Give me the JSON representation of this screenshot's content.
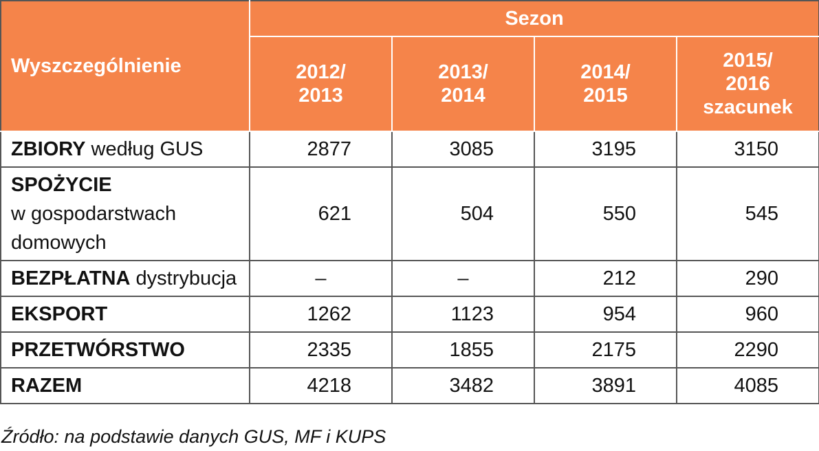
{
  "table": {
    "header": {
      "row_label": "Wyszczególnienie",
      "group": "Sezon",
      "columns": [
        [
          "2012/",
          "2013"
        ],
        [
          "2013/",
          "2014"
        ],
        [
          "2014/",
          "2015"
        ],
        [
          "2015/",
          "2016",
          "szacunek"
        ]
      ]
    },
    "rows": [
      {
        "bold": "ZBIORY",
        "rest": "według GUS",
        "cells": [
          "2877",
          "3085",
          "3195",
          "3150"
        ]
      },
      {
        "bold": "SPOŻYCIE",
        "rest": "w gospodarstwach domowych",
        "cells": [
          "621",
          "504",
          "550",
          "545"
        ]
      },
      {
        "bold": "BEZPŁATNA",
        "rest": "dystrybucja",
        "cells": [
          "–",
          "–",
          "212",
          "290"
        ]
      },
      {
        "bold": "EKSPORT",
        "cells": [
          "1262",
          "1123",
          "954",
          "960"
        ]
      },
      {
        "bold": "PRZETWÓRSTWO",
        "cells": [
          "2335",
          "1855",
          "2175",
          "2290"
        ]
      },
      {
        "bold": "RAZEM",
        "cells": [
          "4218",
          "3482",
          "3891",
          "4085"
        ]
      }
    ]
  },
  "source": "Źródło: na podstawie danych GUS, MF i KUPS"
}
